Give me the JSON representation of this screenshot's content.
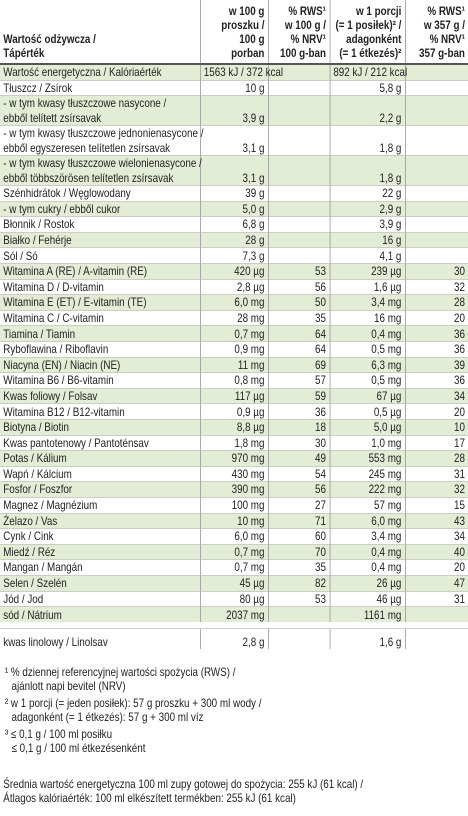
{
  "table": {
    "header": [
      [
        "Wartość odżywcza /",
        "Tápérték"
      ],
      [
        "w 100 g",
        "proszku /",
        "100 g",
        "porban"
      ],
      [
        "% RWS¹",
        "w 100 g /",
        "% NRV¹",
        "100 g-ban"
      ],
      [
        "w 1 porcji",
        "(= 1 posiłek)² /",
        "adagonként",
        "(= 1 étkezés)²"
      ],
      [
        "% RWS¹",
        "w 357 g /",
        "% NRV¹",
        "357 g-ban"
      ]
    ],
    "rows": [
      [
        "Wartość energetyczna / Kalóriaérték",
        "1563 kJ / 372 kcal",
        null,
        "892 kJ / 212 kcal",
        null
      ],
      [
        "Tłuszcz / Zsírok",
        "10 g",
        null,
        "5,8 g",
        null
      ],
      [
        [
          "- w tym kwasy tłuszczowe nasycone /",
          "ebből telített zsírsavak"
        ],
        "3,9 g",
        null,
        "2,2 g",
        null
      ],
      [
        [
          "- w tym kwasy tłuszczowe jednonienasycone /",
          "ebből egyszeresen telítetlen zsírsavak"
        ],
        "3,1 g",
        null,
        "1,8 g",
        null
      ],
      [
        [
          "- w tym kwasy tłuszczowe wielonienasycone /",
          "ebből többszörösen telítetlen zsírsavak"
        ],
        "3,1 g",
        null,
        "1,8 g",
        null
      ],
      [
        "Szénhidrátok / Węglowodany",
        "39 g",
        null,
        "22 g",
        null
      ],
      [
        "- w tym cukry / ebből cukor",
        "5,0 g",
        null,
        "2,9 g",
        null
      ],
      [
        "Błonnik / Rostok",
        "6,8 g",
        null,
        "3,9 g",
        null
      ],
      [
        "Białko / Fehérje",
        "28 g",
        null,
        "16 g",
        null
      ],
      [
        "Sól / Só",
        "7,3 g",
        null,
        "4,1 g",
        null
      ],
      [
        "Witamina A (RE) / A-vitamin (RE)",
        "420 µg",
        "53",
        "239 µg",
        "30"
      ],
      [
        "Witamina D / D-vitamin",
        "2,8 µg",
        "56",
        "1,6 µg",
        "32"
      ],
      [
        "Witamina E (ET) / E-vitamin (TE)",
        "6,0 mg",
        "50",
        "3,4 mg",
        "28"
      ],
      [
        "Witamina C / C-vitamin",
        "28 mg",
        "35",
        "16 mg",
        "20"
      ],
      [
        "Tiamina / Tiamin",
        "0,7 mg",
        "64",
        "0,4 mg",
        "36"
      ],
      [
        "Ryboflawina / Riboflavin",
        "0,9 mg",
        "64",
        "0,5 mg",
        "36"
      ],
      [
        "Niacyna (EN) / Niacin (NE)",
        "11 mg",
        "69",
        "6,3 mg",
        "39"
      ],
      [
        "Witamina B6 / B6-vitamin",
        "0,8 mg",
        "57",
        "0,5 mg",
        "36"
      ],
      [
        "Kwas foliowy / Folsav",
        "117 µg",
        "59",
        "67 µg",
        "34"
      ],
      [
        "Witamina B12 / B12-vitamin",
        "0,9 µg",
        "36",
        "0,5 µg",
        "20"
      ],
      [
        "Biotyna / Biotin",
        "8,8 µg",
        "18",
        "5,0 µg",
        "10"
      ],
      [
        "Kwas pantotenowy / Pantoténsav",
        "1,8 mg",
        "30",
        "1,0 mg",
        "17"
      ],
      [
        "Potas / Kálium",
        "970 mg",
        "49",
        "553 mg",
        "28"
      ],
      [
        "Wapń / Kálcium",
        "430 mg",
        "54",
        "245 mg",
        "31"
      ],
      [
        "Fosfor / Foszfor",
        "390 mg",
        "56",
        "222 mg",
        "32"
      ],
      [
        "Magnez / Magnézium",
        "100 mg",
        "27",
        "57 mg",
        "15"
      ],
      [
        "Żelazo / Vas",
        "10 mg",
        "71",
        "6,0 mg",
        "43"
      ],
      [
        "Cynk / Cink",
        "6,0 mg",
        "60",
        "3,4 mg",
        "34"
      ],
      [
        "Miedź / Réz",
        "0,7 mg",
        "70",
        "0,4 mg",
        "40"
      ],
      [
        "Mangan / Mangán",
        "0,7 mg",
        "35",
        "0,4 mg",
        "20"
      ],
      [
        "Selen / Szelén",
        "45 µg",
        "82",
        "26 µg",
        "47"
      ],
      [
        "Jód / Jod",
        "80 µg",
        "53",
        "46 µg",
        "31"
      ],
      [
        "sód / Nátrium",
        "2037 mg",
        null,
        "1161 mg",
        null
      ]
    ],
    "extra_row": [
      "kwas linolowy / Linolsav",
      "2,8 g",
      null,
      "1,6 g",
      null
    ]
  },
  "footnotes": [
    [
      "¹ % dziennej referencyjnej wartości spożycia (RWS) /",
      "ajánlott napi bevitel (NRV)"
    ],
    [
      "² w 1 porcji (= jeden posiłek): 57 g proszku + 300 ml wody /",
      "adagonként (= 1 étkezés): 57 g + 300 ml víz"
    ],
    [
      "³ ≤ 0,1 g / 100 ml posiłku",
      "≤ 0,1 g / 100 ml étkezésenként"
    ]
  ],
  "note": [
    "Średnia wartość energetyczna 100 ml zupy gotowej do spożycia: 255 kJ (61 kcal) /",
    "Átlagos kalóriaérték: 100 ml elkészített termékben: 255 kJ (61 kcal)"
  ]
}
